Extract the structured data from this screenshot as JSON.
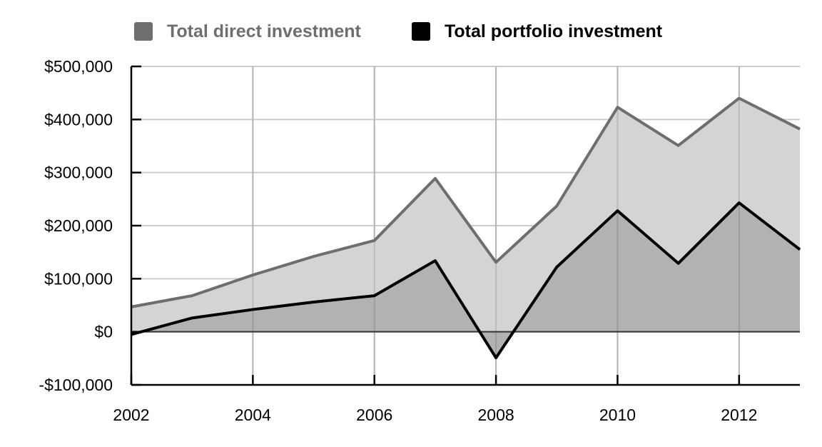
{
  "chart_data": {
    "type": "area",
    "x": [
      2002,
      2003,
      2004,
      2005,
      2006,
      2007,
      2008,
      2009,
      2010,
      2011,
      2012,
      2013
    ],
    "series": [
      {
        "name": "Total direct investment",
        "values": [
          47000,
          68000,
          107000,
          142000,
          172000,
          289000,
          131000,
          237000,
          423000,
          351000,
          440000,
          382000
        ],
        "line_color": "#6e6e6e",
        "fill_color": "#d4d4d4"
      },
      {
        "name": "Total portfolio investment",
        "values": [
          -5000,
          26000,
          42000,
          56000,
          68000,
          134000,
          -49000,
          122000,
          228000,
          129000,
          243000,
          155000
        ],
        "line_color": "#000000",
        "fill_color": "#b2b2b2"
      }
    ],
    "xticks": [
      2002,
      2004,
      2006,
      2008,
      2010,
      2012
    ],
    "xtick_labels": [
      "2002",
      "2004",
      "2006",
      "2008",
      "2010",
      "2012"
    ],
    "yticks": [
      -100000,
      0,
      100000,
      200000,
      300000,
      400000,
      500000
    ],
    "ytick_labels": [
      "-$100,000",
      "$0",
      "$100,000",
      "$200,000",
      "$300,000",
      "$400,000",
      "$500,000"
    ],
    "xlim": [
      2002,
      2013
    ],
    "ylim": [
      -100000,
      500000
    ],
    "grid": true,
    "legend_position": "top-center",
    "title": "",
    "xlabel": "",
    "ylabel": ""
  }
}
